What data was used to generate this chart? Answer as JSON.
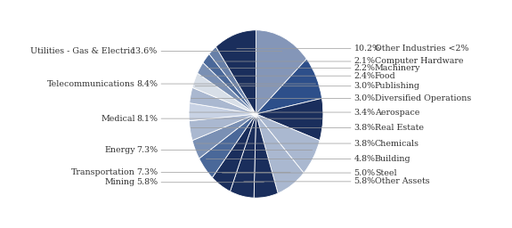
{
  "slices": [
    {
      "label": "Utilities - Gas & Electric",
      "value": 13.6,
      "color": "#8496b8",
      "side": "left"
    },
    {
      "label": "Telecommunications",
      "value": 8.4,
      "color": "#2d4f8a",
      "side": "left"
    },
    {
      "label": "Medical",
      "value": 8.1,
      "color": "#1a2e5c",
      "side": "left"
    },
    {
      "label": "Energy",
      "value": 7.3,
      "color": "#aab8d0",
      "side": "left"
    },
    {
      "label": "Transportation",
      "value": 7.3,
      "color": "#aab8d0",
      "side": "left"
    },
    {
      "label": "Mining",
      "value": 5.8,
      "color": "#1a2e5c",
      "side": "left"
    },
    {
      "label": "Other Assets",
      "value": 5.8,
      "color": "#1a2e5c",
      "side": "right"
    },
    {
      "label": "Steel",
      "value": 5.0,
      "color": "#1a2e5c",
      "side": "right"
    },
    {
      "label": "Building",
      "value": 4.8,
      "color": "#4a6899",
      "side": "right"
    },
    {
      "label": "Chemicals",
      "value": 3.8,
      "color": "#7a90b4",
      "side": "right"
    },
    {
      "label": "Real Estate",
      "value": 3.8,
      "color": "#aab8d0",
      "side": "right"
    },
    {
      "label": "Aerospace",
      "value": 3.4,
      "color": "#c8d2e4",
      "side": "right"
    },
    {
      "label": "Diversified Operations",
      "value": 3.0,
      "color": "#aab8d0",
      "side": "right"
    },
    {
      "label": "Publishing",
      "value": 3.0,
      "color": "#d8dfe8",
      "side": "right"
    },
    {
      "label": "Food",
      "value": 2.4,
      "color": "#7a90b4",
      "side": "right"
    },
    {
      "label": "Machinery",
      "value": 2.2,
      "color": "#4a6899",
      "side": "right"
    },
    {
      "label": "Computer Hardware",
      "value": 2.1,
      "color": "#6880a8",
      "side": "right"
    },
    {
      "label": "Other Industries <2%",
      "value": 10.2,
      "color": "#1a2e5c",
      "side": "right"
    }
  ],
  "start_angle": 90,
  "figure_width": 5.75,
  "figure_height": 2.56,
  "dpi": 100,
  "label_fontsize": 6.8,
  "background_color": "#ffffff",
  "text_color": "#333333",
  "line_color": "#999999"
}
